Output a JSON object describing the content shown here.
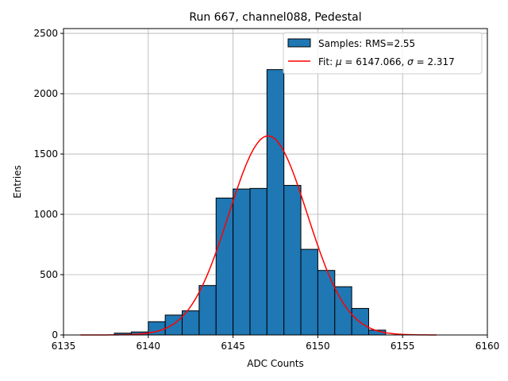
{
  "chart_data": {
    "type": "bar",
    "title": "Run 667, channel088, Pedestal",
    "xlabel": "ADC Counts",
    "ylabel": "Entries",
    "xlim": [
      6135,
      6160
    ],
    "ylim": [
      0,
      2540
    ],
    "xticks": [
      6135,
      6140,
      6145,
      6150,
      6155,
      6160
    ],
    "yticks": [
      0,
      500,
      1000,
      1500,
      2000,
      2500
    ],
    "grid": true,
    "legend_position": "top-right",
    "histogram": {
      "name": "Samples: RMS=2.55",
      "color": "#1f77b4",
      "edge_color": "#000000",
      "bin_edges": [
        6138,
        6139,
        6140,
        6141,
        6142,
        6143,
        6144,
        6145,
        6146,
        6147,
        6148,
        6149,
        6150,
        6151,
        6152,
        6153,
        6154
      ],
      "counts": [
        15,
        25,
        110,
        165,
        200,
        410,
        1135,
        1210,
        1215,
        2200,
        1240,
        710,
        535,
        400,
        220,
        40
      ]
    },
    "fit": {
      "name_prefix": "Fit: ",
      "name_mu": "μ",
      "name_mid": " = 6147.066, ",
      "name_sigma": "σ",
      "name_suffix": " = 2.317",
      "color": "#ff0000",
      "mu": 6147.066,
      "sigma": 2.317,
      "amplitude": 1650,
      "x_range": [
        6136,
        6157
      ]
    }
  }
}
